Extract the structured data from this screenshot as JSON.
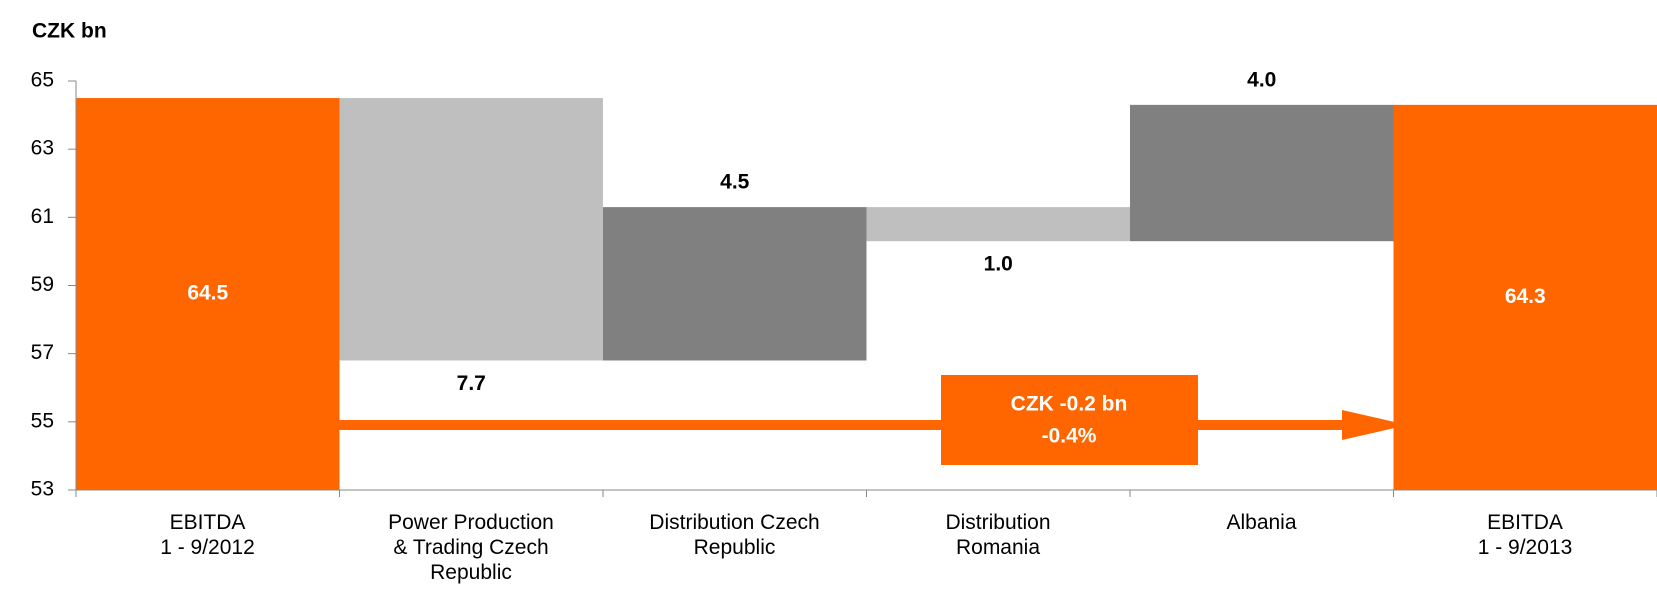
{
  "chart_data": {
    "type": "waterfall",
    "y_axis_label": "CZK bn",
    "categories": [
      "EBITDA\n1 - 9/2012",
      "Power Production\n& Trading Czech\nRepublic",
      "Distribution Czech\nRepublic",
      "Distribution\nRomania",
      "Albania",
      "EBITDA\n1 - 9/2013"
    ],
    "measure": [
      "absolute",
      "relative",
      "relative",
      "relative",
      "relative",
      "absolute"
    ],
    "values": [
      64.5,
      -7.7,
      4.5,
      -1.0,
      4.0,
      64.3
    ],
    "value_labels": [
      "64.5",
      "7.7",
      "4.5",
      "1.0",
      "4.0",
      "64.3"
    ],
    "colors": {
      "total": "#ff6600",
      "decrease": "#bfbfbf",
      "increase": "#808080"
    },
    "ylim": [
      53,
      65
    ],
    "yticks": [
      53,
      55,
      57,
      59,
      61,
      63,
      65
    ],
    "annotation": [
      "CZK -0.2 bn",
      "-0.4%"
    ]
  }
}
